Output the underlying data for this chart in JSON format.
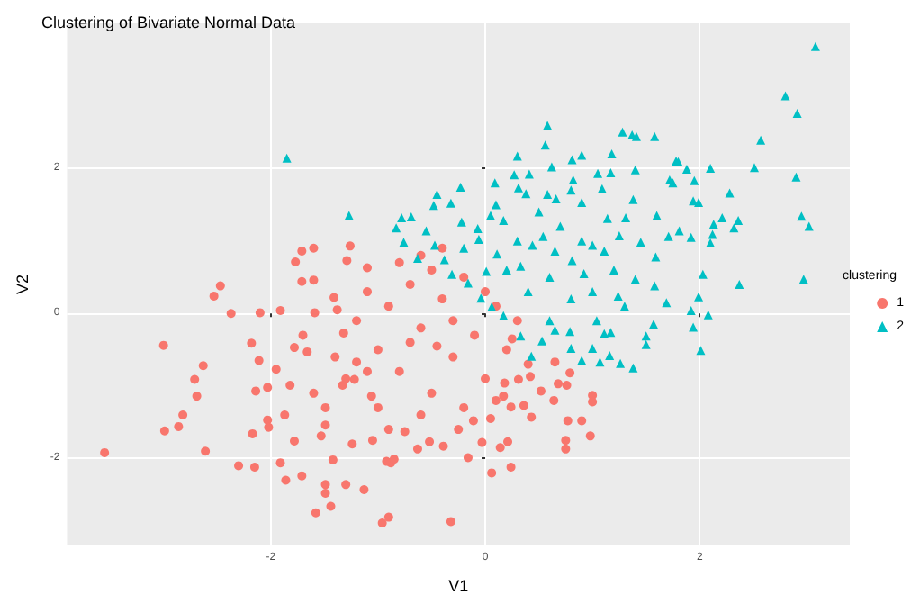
{
  "chart_data": {
    "type": "scatter",
    "title": "Clustering of Bivariate Normal Data",
    "xlabel": "V1",
    "ylabel": "V2",
    "legend_title": "clustering",
    "legend": "right",
    "grid": true,
    "xlim": [
      -3.9,
      3.4
    ],
    "xticks": [
      -2,
      0,
      2
    ],
    "ylim": [
      -3.2,
      4.0
    ],
    "yticks": [
      -2,
      0,
      2
    ],
    "series": [
      {
        "name": "1",
        "color": "#f8766d",
        "marker": "circle",
        "x": [
          -3.55,
          -3.0,
          -2.99,
          -2.86,
          -2.82,
          -2.71,
          -2.69,
          -2.63,
          -2.61,
          -2.53,
          -2.47,
          -2.37,
          -2.3,
          -2.18,
          -2.17,
          -2.15,
          -2.14,
          -2.11,
          -2.1,
          -2.03,
          -2.03,
          -2.02,
          -1.95,
          -1.91,
          -1.91,
          -1.87,
          -1.86,
          -1.78,
          -1.82,
          -1.78,
          -1.71,
          -1.71,
          -1.66,
          -1.6,
          -1.59,
          -1.58,
          -1.49,
          -1.49,
          -1.44,
          -1.42,
          -1.49,
          -1.53,
          -1.49,
          -1.41,
          -1.38,
          -1.32,
          -1.33,
          -1.3,
          -1.24,
          -1.22,
          -1.2,
          -1.13,
          -1.06,
          -0.96,
          -0.9,
          -1.05,
          -0.92,
          -0.88,
          -0.85,
          -0.75,
          -0.63,
          -0.52,
          -0.39,
          -0.32,
          -0.25,
          -0.16,
          0.06,
          0.24,
          -0.03,
          0.14,
          0.21,
          -0.11,
          0.05,
          0.43,
          0.64,
          0.77,
          0.9,
          0.75,
          0.75,
          0.98,
          1.0,
          1.0,
          0.68,
          0.76,
          0.52,
          0.65,
          0.79,
          0.42,
          0.31,
          0.24,
          0.36,
          0.17,
          0.18,
          -1.2,
          -1.1,
          -1.0,
          -0.9,
          -0.8,
          -0.7,
          -0.6,
          -0.5,
          -0.4,
          -0.3,
          -0.2,
          -0.1,
          0.0,
          0.1,
          0.2,
          0.3,
          0.4,
          -1.3,
          -1.0,
          -0.8,
          -0.6,
          -0.4,
          -0.9,
          -0.6,
          -0.2,
          0.1,
          -1.4,
          -1.6,
          -1.7,
          -0.5,
          -0.3,
          0.0,
          -0.7,
          -1.1,
          0.25,
          -0.45,
          -1.71,
          -1.6,
          -1.77,
          -1.26,
          -1.29,
          -1.1
        ],
        "values": [
          -1.92,
          -0.44,
          -1.62,
          -1.56,
          -1.4,
          -0.91,
          -1.14,
          -0.72,
          -1.9,
          0.24,
          0.38,
          0.0,
          -2.1,
          -0.41,
          -1.66,
          -2.12,
          -1.07,
          -0.65,
          0.01,
          -1.02,
          -1.47,
          -1.57,
          -0.77,
          0.04,
          -2.06,
          -1.4,
          -2.3,
          -0.47,
          -0.99,
          -1.76,
          0.44,
          -2.24,
          -0.53,
          0.46,
          0.01,
          -2.75,
          -2.36,
          -2.48,
          -2.66,
          -2.02,
          -1.54,
          -1.69,
          -1.3,
          0.22,
          0.05,
          -0.27,
          -0.99,
          -2.36,
          -1.8,
          -0.91,
          -0.67,
          -2.43,
          -1.14,
          -2.89,
          -2.81,
          -1.75,
          -2.04,
          -2.06,
          -2.01,
          -1.63,
          -1.87,
          -1.77,
          -1.83,
          -2.87,
          -1.6,
          -1.99,
          -2.2,
          -2.12,
          -1.78,
          -1.85,
          -1.77,
          -1.48,
          -1.45,
          -1.43,
          -1.2,
          -1.48,
          -1.48,
          -1.75,
          -1.87,
          -1.69,
          -1.13,
          -1.22,
          -0.97,
          -0.99,
          -1.07,
          -0.67,
          -0.82,
          -0.87,
          -0.91,
          -1.29,
          -1.27,
          -1.14,
          -0.96,
          -0.1,
          0.3,
          -0.5,
          0.1,
          -0.8,
          0.4,
          -0.2,
          -1.1,
          0.2,
          -0.6,
          0.5,
          -0.3,
          -0.9,
          0.1,
          -0.5,
          -0.1,
          -0.7,
          -0.9,
          -1.3,
          0.7,
          0.8,
          0.9,
          -1.6,
          -1.4,
          -1.3,
          -1.2,
          -0.6,
          -1.1,
          -0.3,
          0.6,
          -0.1,
          0.3,
          -0.4,
          -0.8,
          -0.35,
          -0.45,
          0.86,
          0.9,
          0.71,
          0.93,
          0.73,
          0.63
        ]
      },
      {
        "name": "2",
        "color": "#00bfc4",
        "marker": "triangle",
        "x": [
          3.08,
          2.8,
          2.91,
          2.57,
          2.51,
          2.9,
          2.95,
          3.02,
          2.97,
          2.37,
          2.28,
          2.32,
          2.36,
          2.21,
          2.1,
          2.13,
          2.12,
          2.1,
          2.03,
          1.94,
          1.99,
          1.92,
          1.88,
          1.95,
          1.8,
          1.78,
          1.75,
          1.72,
          1.6,
          1.58,
          1.41,
          1.37,
          1.28,
          1.4,
          1.38,
          1.18,
          1.17,
          1.05,
          1.09,
          0.9,
          0.81,
          0.62,
          0.58,
          0.56,
          0.82,
          0.9,
          0.3,
          0.27,
          0.41,
          0.09,
          0.38,
          0.31,
          0.58,
          0.66,
          1.71,
          1.81,
          1.59,
          1.45,
          1.31,
          1.25,
          1.14,
          1.11,
          1.0,
          0.92,
          0.81,
          0.05,
          -0.07,
          0.17,
          0.44,
          0.65,
          0.54,
          0.33,
          0.11,
          0.01,
          -1.85,
          -1.27,
          -0.23,
          -0.45,
          -0.48,
          -0.32,
          -0.78,
          -0.69,
          -0.83,
          -0.76,
          -0.63,
          -0.55,
          -0.47,
          -0.38,
          -0.22,
          -0.06,
          -0.31,
          -0.16,
          1.99,
          1.92,
          2.08,
          1.94,
          2.01,
          1.38,
          1.26,
          1.16,
          1.07,
          0.9,
          0.8,
          0.79,
          1.0,
          1.04,
          1.57,
          1.5,
          1.5,
          1.69,
          1.58,
          1.4,
          1.24,
          1.17,
          1.11,
          0.65,
          0.53,
          0.43,
          0.33,
          0.17,
          0.06,
          -0.04,
          0.2,
          0.4,
          0.6,
          0.8,
          0.3,
          0.7,
          0.1,
          -0.2,
          0.5,
          0.9,
          1.2,
          1.3,
          1.0,
          0.6,
          0.8
        ],
        "values": [
          3.68,
          3.0,
          2.76,
          2.39,
          2.01,
          1.88,
          1.34,
          1.2,
          0.47,
          0.4,
          1.66,
          1.18,
          1.28,
          1.32,
          2.0,
          1.23,
          1.09,
          0.97,
          0.54,
          1.55,
          1.53,
          1.05,
          1.99,
          1.83,
          2.09,
          2.1,
          1.8,
          1.84,
          1.35,
          2.44,
          2.44,
          2.46,
          2.5,
          1.98,
          1.57,
          2.2,
          1.94,
          1.93,
          1.72,
          2.18,
          2.12,
          2.02,
          2.59,
          2.32,
          1.84,
          1.53,
          2.17,
          1.91,
          1.92,
          1.8,
          1.65,
          1.73,
          1.64,
          1.58,
          1.06,
          1.14,
          0.78,
          0.98,
          1.32,
          1.07,
          1.31,
          0.86,
          0.94,
          0.55,
          0.73,
          1.35,
          1.17,
          1.28,
          0.94,
          0.86,
          1.06,
          0.65,
          0.82,
          0.58,
          2.14,
          1.35,
          1.74,
          1.64,
          1.49,
          1.52,
          1.32,
          1.33,
          1.18,
          0.98,
          0.76,
          1.14,
          0.94,
          0.74,
          1.26,
          1.02,
          0.54,
          0.42,
          0.23,
          0.04,
          -0.02,
          -0.19,
          -0.51,
          -0.75,
          -0.69,
          -0.58,
          -0.67,
          -0.65,
          -0.48,
          -0.25,
          -0.48,
          -0.1,
          -0.15,
          -0.43,
          -0.31,
          0.15,
          0.38,
          0.47,
          0.24,
          -0.26,
          -0.28,
          -0.23,
          -0.38,
          -0.59,
          -0.31,
          -0.03,
          0.09,
          0.21,
          0.6,
          0.3,
          0.5,
          0.2,
          1.0,
          1.2,
          1.5,
          0.9,
          1.4,
          1.0,
          0.6,
          0.1,
          0.3,
          -0.1,
          1.7
        ]
      }
    ]
  }
}
